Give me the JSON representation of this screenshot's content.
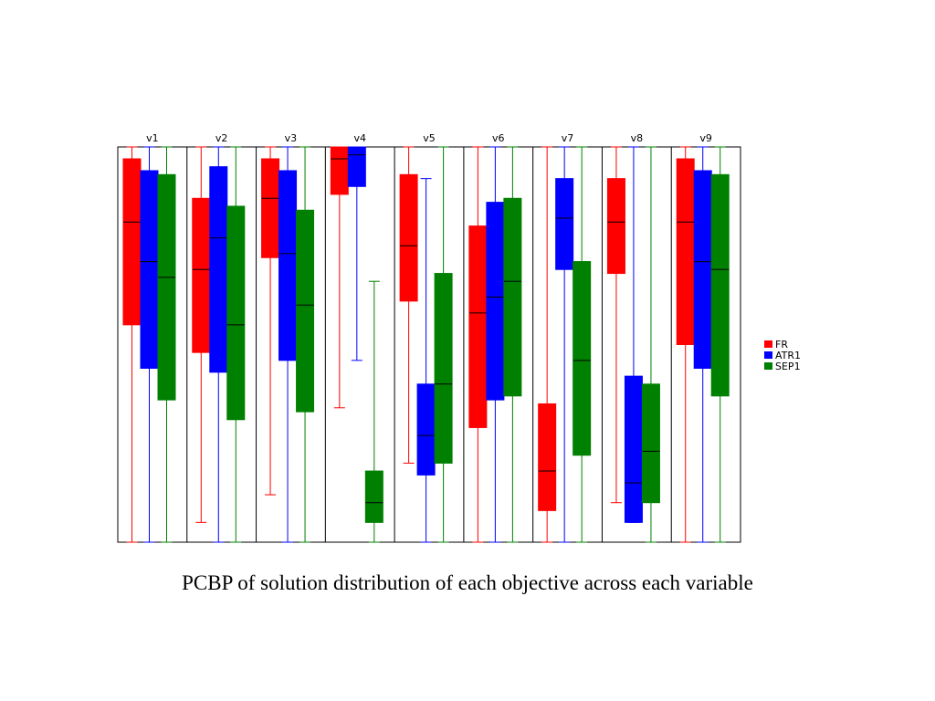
{
  "caption": "PCBP of solution distribution of each objective across each variable",
  "chart_data": {
    "type": "boxplot",
    "title": "",
    "xlabel": "",
    "ylabel": "",
    "ylim": [
      0,
      1
    ],
    "grid": false,
    "legend_position": "right",
    "categories": [
      "v1",
      "v2",
      "v3",
      "v4",
      "v5",
      "v6",
      "v7",
      "v8",
      "v9"
    ],
    "series": [
      {
        "name": "FR",
        "color": "#ff0000",
        "boxes": [
          {
            "min": 0.0,
            "q1": 0.55,
            "median": 0.81,
            "q3": 0.97,
            "max": 1.0
          },
          {
            "min": 0.05,
            "q1": 0.48,
            "median": 0.69,
            "q3": 0.87,
            "max": 1.0
          },
          {
            "min": 0.12,
            "q1": 0.72,
            "median": 0.87,
            "q3": 0.97,
            "max": 1.0
          },
          {
            "min": 0.34,
            "q1": 0.88,
            "median": 0.97,
            "q3": 1.0,
            "max": 1.0
          },
          {
            "min": 0.2,
            "q1": 0.61,
            "median": 0.75,
            "q3": 0.93,
            "max": 1.0
          },
          {
            "min": 0.0,
            "q1": 0.29,
            "median": 0.58,
            "q3": 0.8,
            "max": 1.0
          },
          {
            "min": 0.0,
            "q1": 0.08,
            "median": 0.18,
            "q3": 0.35,
            "max": 1.0
          },
          {
            "min": 0.1,
            "q1": 0.68,
            "median": 0.81,
            "q3": 0.92,
            "max": 1.0
          },
          {
            "min": 0.0,
            "q1": 0.5,
            "median": 0.81,
            "q3": 0.97,
            "max": 1.0
          }
        ]
      },
      {
        "name": "ATR1",
        "color": "#0000ff",
        "boxes": [
          {
            "min": 0.0,
            "q1": 0.44,
            "median": 0.71,
            "q3": 0.94,
            "max": 1.0
          },
          {
            "min": 0.0,
            "q1": 0.43,
            "median": 0.77,
            "q3": 0.95,
            "max": 1.0
          },
          {
            "min": 0.0,
            "q1": 0.46,
            "median": 0.73,
            "q3": 0.94,
            "max": 1.0
          },
          {
            "min": 0.46,
            "q1": 0.9,
            "median": 0.98,
            "q3": 1.0,
            "max": 1.0
          },
          {
            "min": 0.0,
            "q1": 0.17,
            "median": 0.27,
            "q3": 0.4,
            "max": 0.92
          },
          {
            "min": 0.0,
            "q1": 0.36,
            "median": 0.62,
            "q3": 0.86,
            "max": 1.0
          },
          {
            "min": 0.0,
            "q1": 0.69,
            "median": 0.82,
            "q3": 0.92,
            "max": 1.0
          },
          {
            "min": 0.05,
            "q1": 0.05,
            "median": 0.15,
            "q3": 0.42,
            "max": 1.0
          },
          {
            "min": 0.0,
            "q1": 0.44,
            "median": 0.71,
            "q3": 0.94,
            "max": 1.0
          }
        ]
      },
      {
        "name": "SEP1",
        "color": "#008000",
        "boxes": [
          {
            "min": 0.0,
            "q1": 0.36,
            "median": 0.67,
            "q3": 0.93,
            "max": 1.0
          },
          {
            "min": 0.0,
            "q1": 0.31,
            "median": 0.55,
            "q3": 0.85,
            "max": 1.0
          },
          {
            "min": 0.0,
            "q1": 0.33,
            "median": 0.6,
            "q3": 0.84,
            "max": 1.0
          },
          {
            "min": 0.0,
            "q1": 0.05,
            "median": 0.1,
            "q3": 0.18,
            "max": 0.66
          },
          {
            "min": 0.0,
            "q1": 0.2,
            "median": 0.4,
            "q3": 0.68,
            "max": 1.0
          },
          {
            "min": 0.0,
            "q1": 0.37,
            "median": 0.66,
            "q3": 0.87,
            "max": 1.0
          },
          {
            "min": 0.0,
            "q1": 0.22,
            "median": 0.46,
            "q3": 0.71,
            "max": 1.0
          },
          {
            "min": 0.0,
            "q1": 0.1,
            "median": 0.23,
            "q3": 0.4,
            "max": 1.0
          },
          {
            "min": 0.0,
            "q1": 0.37,
            "median": 0.69,
            "q3": 0.93,
            "max": 1.0
          }
        ]
      }
    ]
  }
}
